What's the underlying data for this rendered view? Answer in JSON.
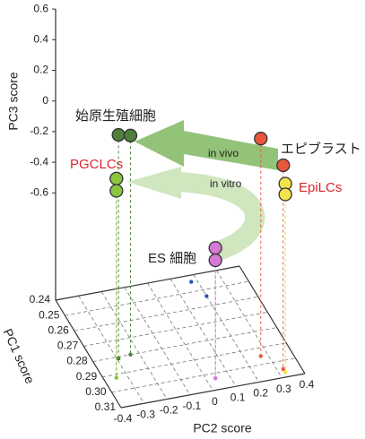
{
  "chart_data": {
    "type": "scatter3d",
    "x_label": "PC2 score",
    "y_label": "PC1 score",
    "z_label": "PC3 score",
    "xlim": [
      -0.4,
      0.4
    ],
    "xticks": [
      -0.4,
      -0.3,
      -0.2,
      -0.1,
      0,
      0.1,
      0.2,
      0.3,
      0.4
    ],
    "ylim": [
      0.24,
      0.31
    ],
    "yticks": [
      0.24,
      0.25,
      0.26,
      0.27,
      0.28,
      0.29,
      {
        "value": 0.3,
        "label": "0.30"
      },
      0.31
    ],
    "zlim": [
      -1.3,
      0.6
    ],
    "zticks": [
      0.6,
      0.4,
      0.2,
      0,
      -0.2,
      -0.4,
      -0.6
    ],
    "annotations": [
      "in vivo",
      "in vitro"
    ],
    "series": [
      {
        "name": "始原生殖細胞",
        "color": "#4f7f3a",
        "x": [
          -0.293,
          -0.237
        ],
        "y": [
          0.281,
          0.28
        ],
        "z": [
          0.16,
          0.13
        ]
      },
      {
        "name": "PGCLCs",
        "color": "#8cc63f",
        "x": [
          -0.347,
          -0.347
        ],
        "y": [
          0.292,
          0.292
        ],
        "z": [
          0.0,
          -0.08
        ]
      },
      {
        "name": "エピブラスト",
        "color": "#e8573c",
        "x": [
          0.269,
          0.326
        ],
        "y": [
          0.295,
          0.305
        ],
        "z": [
          0.12,
          0.03
        ]
      },
      {
        "name": "EpiLCs",
        "color": "#f3e24c",
        "x": [
          0.327,
          0.327
        ],
        "y": [
          0.307,
          0.307
        ],
        "z": [
          -0.07,
          -0.14
        ]
      },
      {
        "name": "ES 細胞",
        "color": "#d47ad6",
        "x": [
          0.039,
          0.039
        ],
        "y": [
          0.303,
          0.303
        ],
        "z": [
          -0.45,
          -0.53
        ]
      },
      {
        "color": "#2f4fbf",
        "x": [
          0.174,
          0.2
        ],
        "y": [
          0.244,
          0.254
        ],
        "z": [
          -1.3,
          -1.3
        ]
      }
    ]
  }
}
